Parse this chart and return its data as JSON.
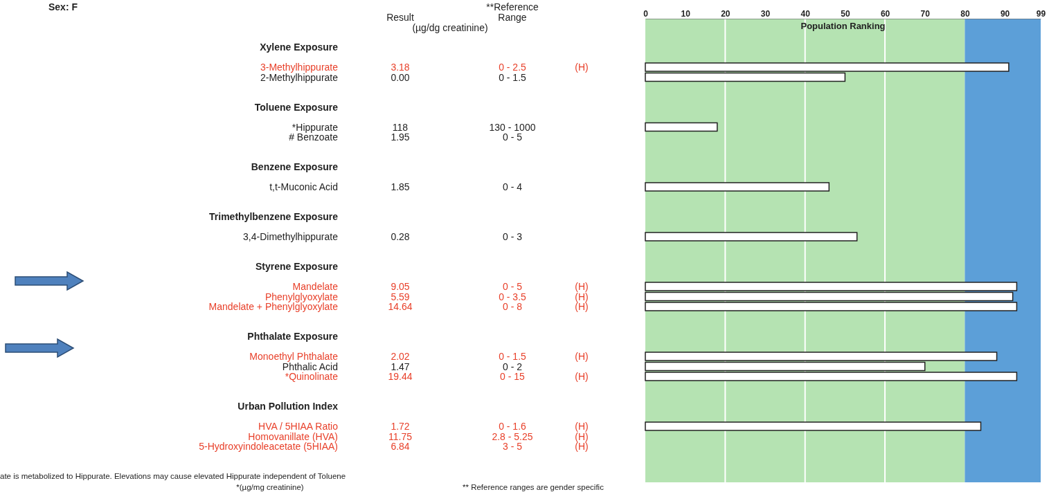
{
  "chart_data": {
    "type": "bar",
    "orientation": "horizontal",
    "x2label": "Population Ranking",
    "categories": [
      "Xylene Exposure",
      "3-Methylhippurate",
      "2-Methylhippurate",
      "Toluene Exposure",
      "*Hippurate",
      "# Benzoate",
      "Benzene Exposure",
      "t,t-Muconic Acid",
      "Trimethylbenzene Exposure",
      "3,4-Dimethylhippurate",
      "Styrene Exposure",
      "Mandelate",
      "Phenylglyoxylate",
      "Mandelate + Phenylglyoxylate",
      "Phthalate Exposure",
      "Monoethyl Phthalate",
      "Phthalic Acid",
      "*Quinolinate",
      "Urban Pollution Index",
      "HVA / 5HIAA Ratio",
      "Homovanillate (HVA)",
      "5-Hydroxyindoleacetate (5HIAA)"
    ],
    "series": [
      {
        "axis": "x2",
        "color": "#ffffff",
        "values": [
          null,
          91,
          50,
          null,
          18,
          null,
          null,
          46,
          null,
          53,
          null,
          93,
          92,
          93,
          null,
          88,
          70,
          93,
          null,
          84,
          null,
          null
        ]
      }
    ],
    "x2lim": [
      0,
      99
    ],
    "x2ticks": [
      0,
      10,
      20,
      30,
      40,
      50,
      60,
      70,
      80,
      90,
      99
    ],
    "bands": [
      {
        "axis": "x2",
        "from": 0,
        "to": 80,
        "color": "#b5e3b2"
      },
      {
        "axis": "x2",
        "from": 80,
        "to": 99,
        "color": "#5c9fd8"
      }
    ],
    "ref_lines": [
      {
        "axis": "x2",
        "value": 20,
        "color": "#ffffff"
      },
      {
        "axis": "x2",
        "value": 40,
        "color": "#ffffff"
      },
      {
        "axis": "x2",
        "value": 60,
        "color": "#ffffff"
      }
    ],
    "annotations": [
      "Sex: F",
      "Result",
      "(µg/dg creatinine)",
      "**Reference",
      "Range",
      "ate is metabolized to Hippurate. Elevations may cause elevated Hippurate independent of Toluene",
      "*(µg/mg creatinine)",
      "** Reference ranges are gender specific",
      "3.18   0 - 2.5   (H)",
      "0.00   0 - 1.5",
      "118   130 - 1000",
      "1.95   0 - 5",
      "1.85   0 - 4",
      "0.28   0 - 3",
      "9.05   0 - 5   (H)",
      "5.59   0 - 3.5   (H)",
      "14.64   0 - 8   (H)",
      "2.02   0 - 1.5   (H)",
      "1.47   0 - 2",
      "19.44   0 - 15   (H)",
      "1.72   0 - 1.6   (H)",
      "11.75   2.8 - 5.25   (H)",
      "6.84   3 - 5   (H)"
    ]
  }
}
